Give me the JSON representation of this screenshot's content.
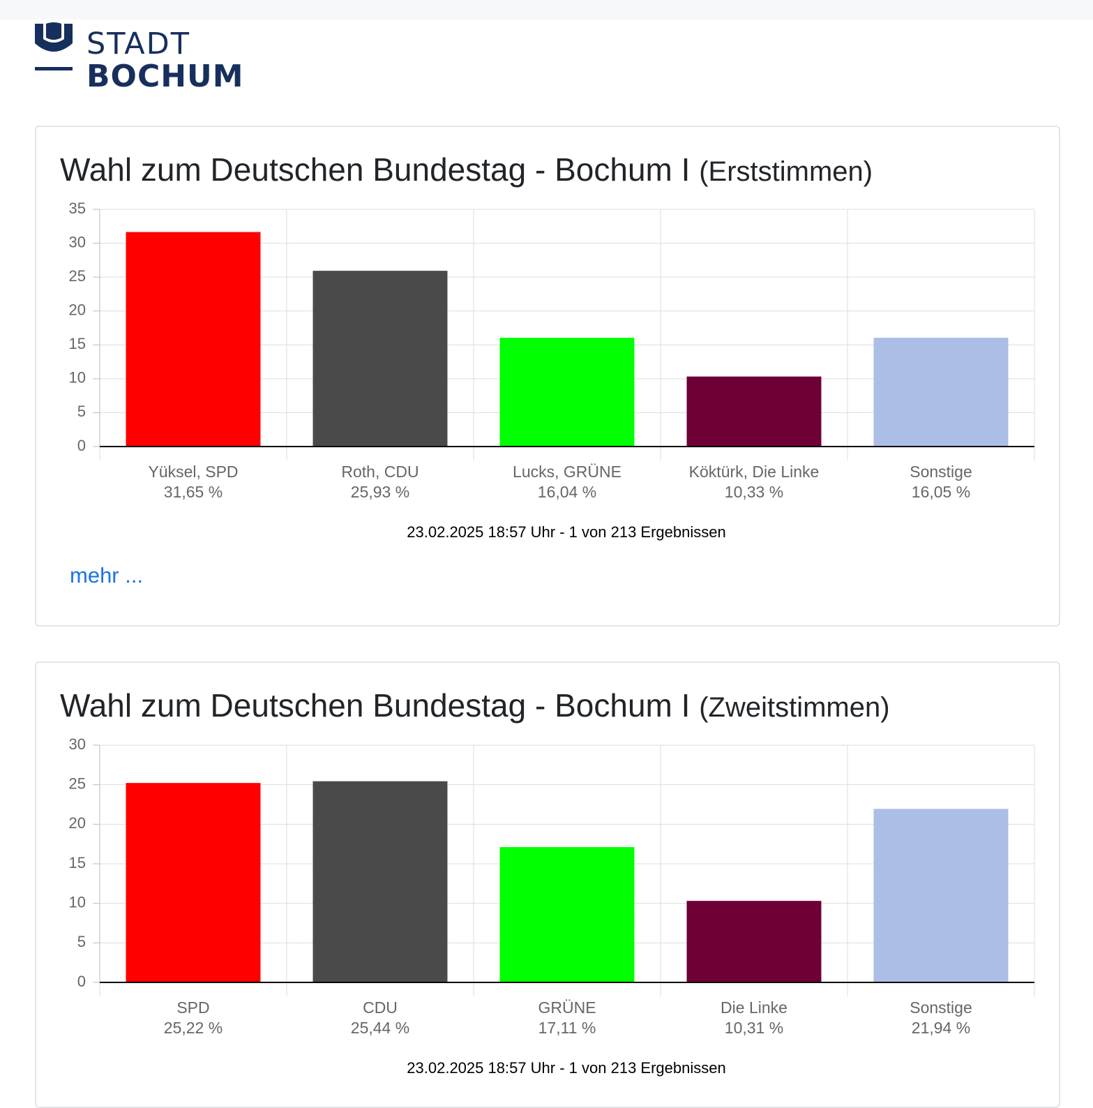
{
  "logo": {
    "line1": "STADT",
    "line2": "BOCHUM",
    "icon": "shield-book-icon",
    "color": "#172f5c"
  },
  "cards": [
    {
      "title": "Wahl zum Deutschen Bundestag - Bochum I",
      "subtitle": "(Erststimmen)",
      "stand": "23.02.2025 18:57 Uhr - 1 von 213 Ergebnissen",
      "more_label": "mehr ..."
    },
    {
      "title": "Wahl zum Deutschen Bundestag - Bochum I",
      "subtitle": "(Zweitstimmen)",
      "stand": "23.02.2025 18:57 Uhr - 1 von 213 Ergebnissen"
    }
  ],
  "chart_data": [
    {
      "type": "bar",
      "categories": [
        "Yüksel, SPD",
        "Roth, CDU",
        "Lucks, GRÜNE",
        "Köktürk, Die Linke",
        "Sonstige"
      ],
      "values": [
        31.65,
        25.93,
        16.04,
        10.33,
        16.05
      ],
      "value_labels": [
        "31,65 %",
        "25,93 %",
        "16,04 %",
        "10,33 %",
        "16,05 %"
      ],
      "colors": [
        "#ff0000",
        "#4a4a4a",
        "#00ff00",
        "#6e0036",
        "#aabee6"
      ],
      "ylim": [
        0,
        35
      ],
      "yticks": [
        0,
        5,
        10,
        15,
        20,
        25,
        30,
        35
      ],
      "grid": true,
      "title": "",
      "xlabel": "",
      "ylabel": ""
    },
    {
      "type": "bar",
      "categories": [
        "SPD",
        "CDU",
        "GRÜNE",
        "Die Linke",
        "Sonstige"
      ],
      "values": [
        25.22,
        25.44,
        17.11,
        10.31,
        21.94
      ],
      "value_labels": [
        "25,22 %",
        "25,44 %",
        "17,11 %",
        "10,31 %",
        "21,94 %"
      ],
      "colors": [
        "#ff0000",
        "#4a4a4a",
        "#00ff00",
        "#6e0036",
        "#aabee6"
      ],
      "ylim": [
        0,
        30
      ],
      "yticks": [
        0,
        5,
        10,
        15,
        20,
        25,
        30
      ],
      "grid": true,
      "title": "",
      "xlabel": "",
      "ylabel": ""
    }
  ]
}
